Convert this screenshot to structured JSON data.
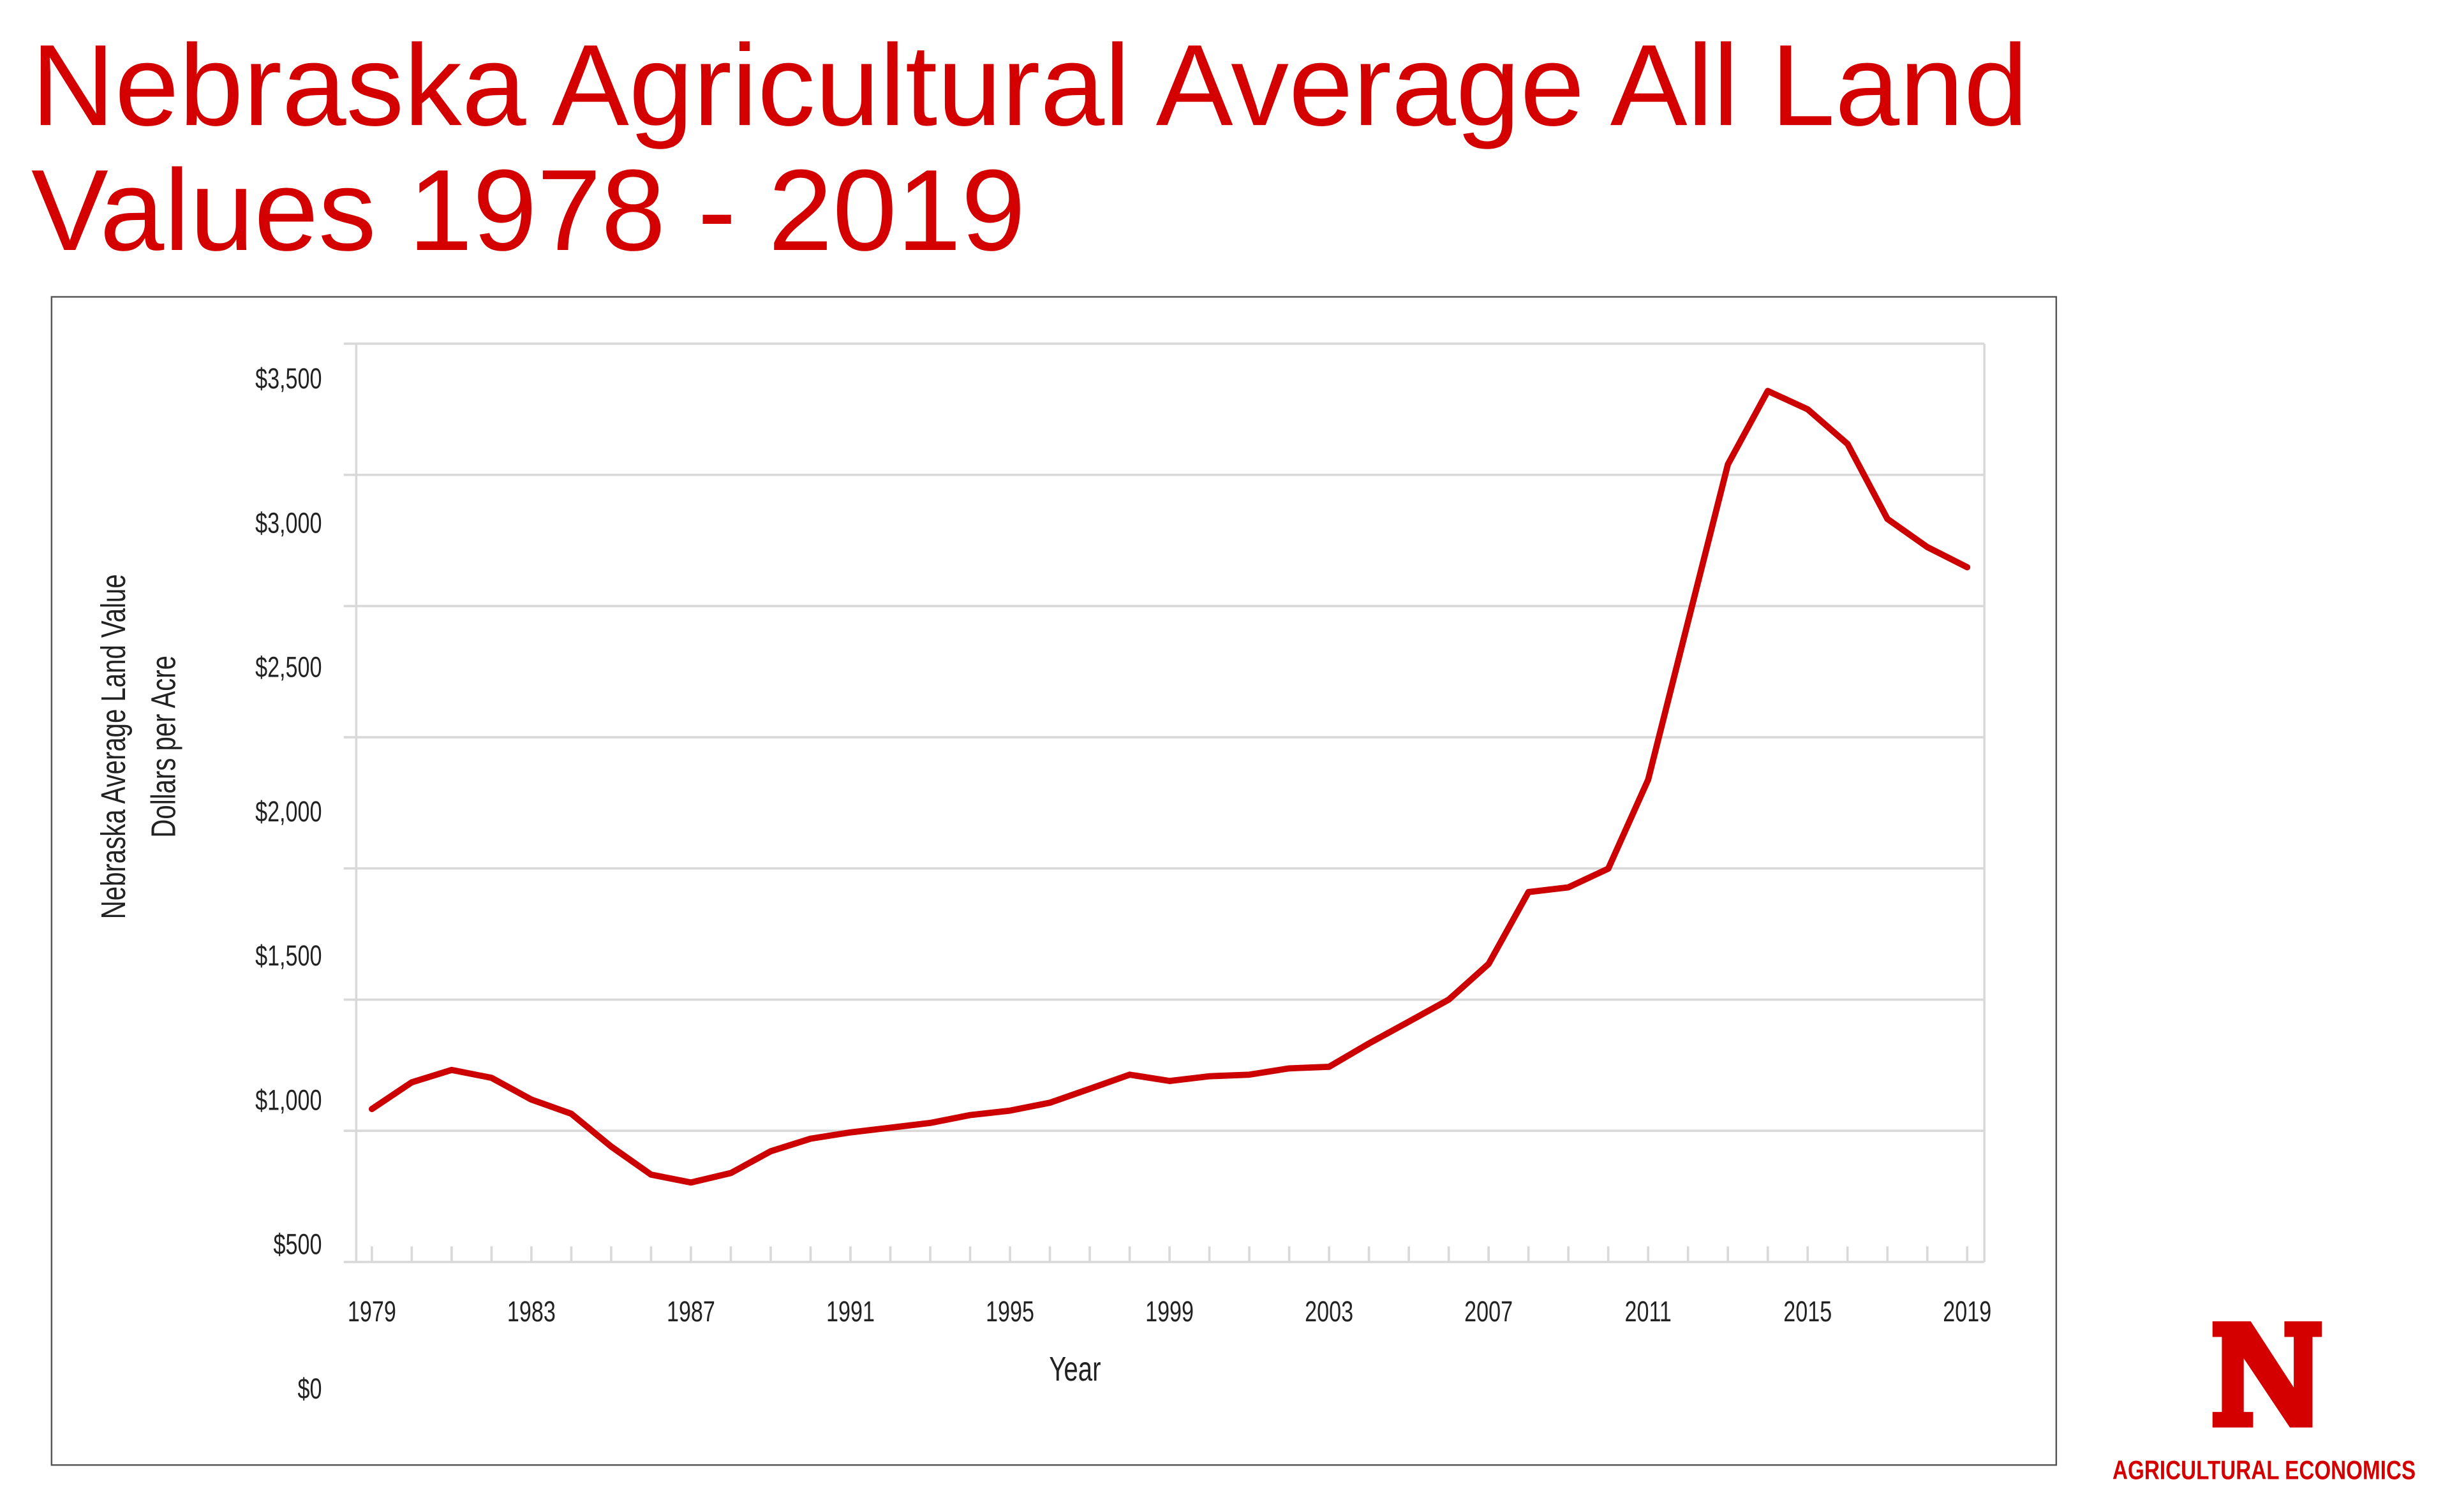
{
  "title_lines": [
    "Nebraska Agricultural Average All Land",
    "Values 1978 - 2019"
  ],
  "logo": {
    "letter": "N",
    "text": "AGRICULTURAL ECONOMICS"
  },
  "colors": {
    "title": "#d40000",
    "line": "#cc0000",
    "grid": "#d9d9d9",
    "logo": "#d40000"
  },
  "chart_data": {
    "type": "line",
    "title": "",
    "xlabel": "Year",
    "ylabel_lines": [
      "Nebraska  Average Land Value",
      "Dollars per Acre"
    ],
    "ylim": [
      0,
      3500
    ],
    "xlim": [
      1979,
      2019
    ],
    "grid": true,
    "y_ticks": [
      0,
      500,
      1000,
      1500,
      2000,
      2500,
      3000,
      3500
    ],
    "y_tick_labels": [
      "$0",
      "$500",
      "$1,000",
      "$1,500",
      "$2,000",
      "$2,500",
      "$3,000",
      "$3,500"
    ],
    "x_tick_labels": [
      "1979",
      "1983",
      "1987",
      "1991",
      "1995",
      "1999",
      "2003",
      "2007",
      "2011",
      "2015",
      "2019"
    ],
    "x": [
      1979,
      1980,
      1981,
      1982,
      1983,
      1984,
      1985,
      1986,
      1987,
      1988,
      1989,
      1990,
      1991,
      1992,
      1993,
      1994,
      1995,
      1996,
      1997,
      1998,
      1999,
      2000,
      2001,
      2002,
      2003,
      2004,
      2005,
      2006,
      2007,
      2008,
      2009,
      2010,
      2011,
      2012,
      2013,
      2014,
      2015,
      2016,
      2017,
      2018,
      2019
    ],
    "values": [
      583,
      685,
      732,
      702,
      619,
      565,
      440,
      333,
      303,
      339,
      422,
      470,
      494,
      512,
      530,
      560,
      577,
      607,
      660,
      714,
      690,
      708,
      714,
      738,
      744,
      833,
      916,
      1000,
      1136,
      1410,
      1428,
      1499,
      1838,
      2440,
      3040,
      3320,
      3250,
      3118,
      2832,
      2725,
      2648
    ]
  }
}
